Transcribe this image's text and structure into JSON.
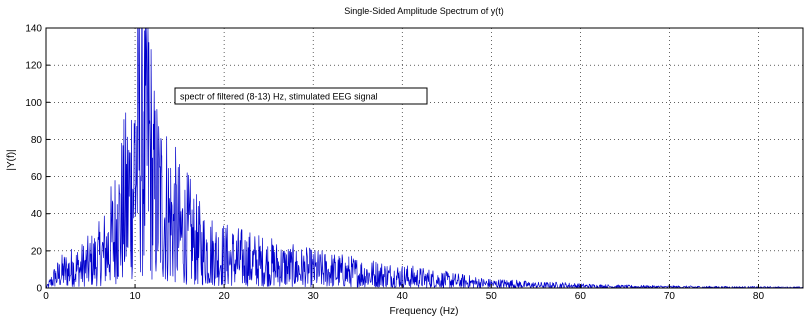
{
  "chart_data": {
    "type": "line",
    "title": "Single-Sided Amplitude Spectrum of y(t)",
    "xlabel": "Frequency (Hz)",
    "ylabel": "|Y(f)|",
    "xlim": [
      0,
      85
    ],
    "ylim": [
      0,
      140
    ],
    "xticks": [
      0,
      10,
      20,
      30,
      40,
      50,
      60,
      70,
      80
    ],
    "yticks": [
      0,
      20,
      40,
      60,
      80,
      100,
      120,
      140
    ],
    "xtick_labels": [
      "0",
      "10",
      "20",
      "30",
      "40",
      "50",
      "60",
      "70",
      "80"
    ],
    "ytick_labels": [
      "0",
      "20",
      "40",
      "60",
      "80",
      "100",
      "120",
      "140"
    ],
    "grid": true,
    "grid_style": "dotted",
    "legend_position": "upper-center",
    "annotation": "spectr of filtered (8-13) Hz, stimulated EEG signal",
    "series": [
      {
        "name": "",
        "color": "#0000cc",
        "x": [
          0,
          1,
          2,
          3,
          4,
          5,
          6,
          7,
          8,
          9,
          10,
          10.5,
          11,
          11.5,
          12,
          13,
          14,
          15,
          16,
          17,
          18,
          19,
          20,
          22,
          24,
          26,
          28,
          30,
          32,
          34,
          36,
          38,
          40,
          42,
          44,
          46,
          48,
          50,
          52,
          55,
          58,
          60,
          65,
          70,
          75,
          80,
          85
        ],
        "y": [
          0,
          8,
          12,
          14,
          15,
          18,
          22,
          30,
          45,
          60,
          90,
          132,
          95,
          116,
          70,
          62,
          52,
          42,
          38,
          30,
          26,
          24,
          22,
          20,
          18,
          16,
          14,
          13,
          12,
          11,
          10,
          9,
          8,
          7,
          6,
          5,
          4,
          3,
          3,
          2,
          2,
          1.5,
          1,
          0.8,
          0.6,
          0.5,
          0.4
        ]
      }
    ]
  },
  "colors": {
    "series": "#0000cc",
    "axes": "#000000",
    "grid": "#000000",
    "background": "#ffffff"
  }
}
